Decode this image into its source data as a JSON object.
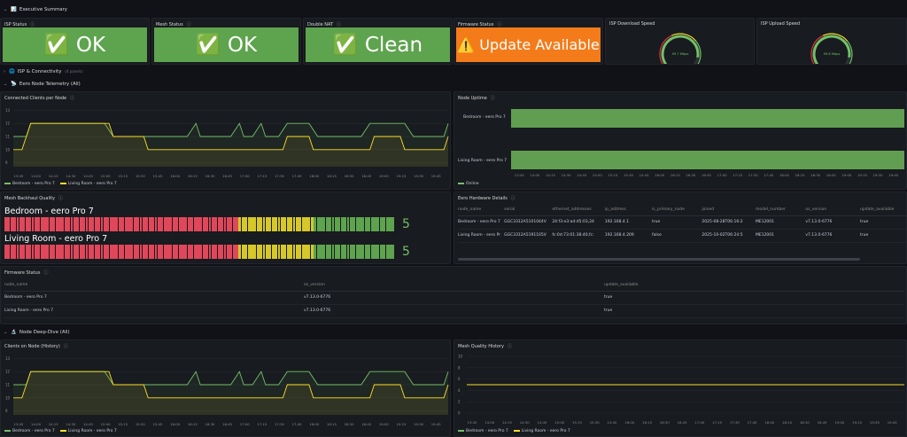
{
  "rows": {
    "exec": {
      "chevron": "⌄",
      "icon": "📊",
      "title": "Executive Summary"
    },
    "isp": {
      "chevron": "›",
      "icon": "🌐",
      "title": "ISP & Connectivity",
      "sub": "(4 panels)"
    },
    "eero": {
      "chevron": "⌄",
      "icon": "📡",
      "title": "Eero Node Telemetry (All)"
    },
    "deep": {
      "chevron": "⌄",
      "icon": "🔬",
      "title": "Node Deep-Dive (All)"
    }
  },
  "stats": [
    {
      "title": "ISP Status",
      "value": "✅ OK",
      "color": "#5ea34e"
    },
    {
      "title": "Mesh Status",
      "value": "✅ OK",
      "color": "#5ea34e"
    },
    {
      "title": "Double NAT",
      "value": "✅ Clean",
      "color": "#5ea34e"
    },
    {
      "title": "Firmware Status",
      "value": "⚠️ Update Available",
      "color": "#f47b1a"
    }
  ],
  "gauges": [
    {
      "title": "ISP Download Speed",
      "label": "99.7 Mbps",
      "fraction": 0.9
    },
    {
      "title": "ISP Upload Speed",
      "label": "99.8 Mbps",
      "fraction": 0.9
    }
  ],
  "clients_panel": {
    "title": "Connected Clients per Node",
    "yticks": [
      "13",
      "12",
      "11",
      "10",
      "9"
    ],
    "xticks": [
      "13:45",
      "14:00",
      "14:15",
      "14:30",
      "14:45",
      "15:00",
      "15:15",
      "15:30",
      "15:45",
      "16:00",
      "16:15",
      "16:30",
      "16:45",
      "17:00",
      "17:15",
      "17:30",
      "17:45",
      "18:00",
      "18:15",
      "18:30",
      "18:45",
      "19:00",
      "19:15",
      "19:30",
      "19:45"
    ],
    "legend": [
      "Bedroom - eero Pro 7",
      "Living Room - eero Pro 7"
    ]
  },
  "uptime_panel": {
    "title": "Node Uptime",
    "rows": [
      "Bedroom - eero Pro 7",
      "Living Room - eero Pro 7"
    ],
    "xticks": [
      "13:45",
      "14:00",
      "14:15",
      "14:30",
      "14:45",
      "15:00",
      "15:15",
      "15:30",
      "15:45",
      "16:00",
      "16:15",
      "16:30",
      "16:45",
      "17:00",
      "17:15",
      "17:30",
      "17:45",
      "18:00",
      "18:15",
      "18:30",
      "18:45",
      "19:00",
      "19:15",
      "19:30",
      "19:45"
    ],
    "legend": "Online"
  },
  "backhaul": {
    "title": "Mesh Backhaul Quality",
    "nodes": [
      {
        "name": "Bedroom - eero Pro 7",
        "value": "5"
      },
      {
        "name": "Living Room - eero Pro 7",
        "value": "5"
      }
    ]
  },
  "hardware": {
    "title": "Eero Hardware Details",
    "headers": [
      "node_name",
      "serial",
      "ethernet_addresses",
      "ip_address",
      "is_primary_node",
      "joined",
      "model_number",
      "os_version",
      "update_available",
      "u"
    ],
    "rows": [
      [
        "Bedroom - eero Pro 7",
        "GGC3312A5101044V",
        "24:f3:e3:ad:d5:03,24",
        "192.168.4.1",
        "true",
        "2025-08-28T06:16:2",
        "ME12001",
        "v7.13.0-6776",
        "true",
        ""
      ],
      [
        "Living Room - eero Pr",
        "GGC3312A5191105V",
        "fc:0d:73:01:38:40,fc:",
        "192.168.4.209",
        "false",
        "2025-10-02T06:24:5",
        "ME12001",
        "v7.13.0-6776",
        "true",
        ""
      ]
    ]
  },
  "firmware": {
    "title": "Firmware Status",
    "headers": [
      "node_name",
      "os_version",
      "update_available"
    ],
    "rows": [
      [
        "Bedroom - eero Pro 7",
        "v7.13.0-6776",
        "true"
      ],
      [
        "Living Room - eero Pro 7",
        "v7.13.0-6776",
        "true"
      ]
    ]
  },
  "history_panel": {
    "title": "Clients on Node (History)",
    "legend": [
      "Bedroom - eero Pro 7",
      "Living Room - eero Pro 7"
    ]
  },
  "mesh_history": {
    "title": "Mesh Quality History",
    "yticks": [
      "10",
      "8",
      "6",
      "4",
      "2",
      "0"
    ],
    "xticks": [
      "13:45",
      "14:00",
      "14:15",
      "14:30",
      "14:45",
      "15:00",
      "15:15",
      "15:30",
      "15:45",
      "16:00",
      "16:15",
      "16:30",
      "16:45",
      "17:00",
      "17:15",
      "17:30",
      "17:45",
      "18:00",
      "18:15",
      "18:30",
      "18:45",
      "19:00",
      "19:15",
      "19:30",
      "19:45"
    ],
    "legend": [
      "Bedroom - eero Pro 7",
      "Living Room - eero Pro 7"
    ],
    "value": 5
  },
  "chart_data": {
    "type": "line",
    "title": "Connected Clients per Node",
    "x": [
      "13:45",
      "14:00",
      "14:15",
      "14:30",
      "14:45",
      "15:00",
      "15:15",
      "15:30",
      "15:45",
      "16:00",
      "16:15",
      "16:30",
      "16:45",
      "17:00",
      "17:15",
      "17:30",
      "17:45",
      "18:00",
      "18:15",
      "18:30",
      "18:45",
      "19:00",
      "19:15",
      "19:30",
      "19:45"
    ],
    "series": [
      {
        "name": "Bedroom - eero Pro 7",
        "color": "#73bf69",
        "points": [
          [
            0,
            11
          ],
          [
            0.03,
            11
          ],
          [
            0.04,
            12
          ],
          [
            0.21,
            12
          ],
          [
            0.23,
            11
          ],
          [
            0.4,
            11
          ],
          [
            0.42,
            12
          ],
          [
            0.43,
            11
          ],
          [
            0.5,
            11
          ],
          [
            0.52,
            12
          ],
          [
            0.53,
            11
          ],
          [
            0.55,
            11
          ],
          [
            0.57,
            12
          ],
          [
            0.58,
            11
          ],
          [
            0.61,
            11
          ],
          [
            0.63,
            12
          ],
          [
            0.68,
            12
          ],
          [
            0.7,
            11
          ],
          [
            0.8,
            11
          ],
          [
            0.82,
            12
          ],
          [
            0.9,
            12
          ],
          [
            0.92,
            11
          ],
          [
            0.99,
            11
          ],
          [
            1,
            12
          ]
        ]
      },
      {
        "name": "Living Room - eero Pro 7",
        "color": "#fade2a",
        "points": [
          [
            0,
            10
          ],
          [
            0.02,
            10
          ],
          [
            0.03,
            11
          ],
          [
            0.04,
            12
          ],
          [
            0.22,
            12
          ],
          [
            0.23,
            11
          ],
          [
            0.3,
            11
          ],
          [
            0.31,
            10
          ],
          [
            0.62,
            10
          ],
          [
            0.63,
            11
          ],
          [
            0.68,
            11
          ],
          [
            0.69,
            10
          ],
          [
            0.82,
            10
          ],
          [
            0.83,
            11
          ],
          [
            0.89,
            11
          ],
          [
            0.9,
            10
          ],
          [
            0.99,
            10
          ],
          [
            1,
            11
          ]
        ]
      }
    ],
    "ylim": [
      9,
      13
    ]
  }
}
